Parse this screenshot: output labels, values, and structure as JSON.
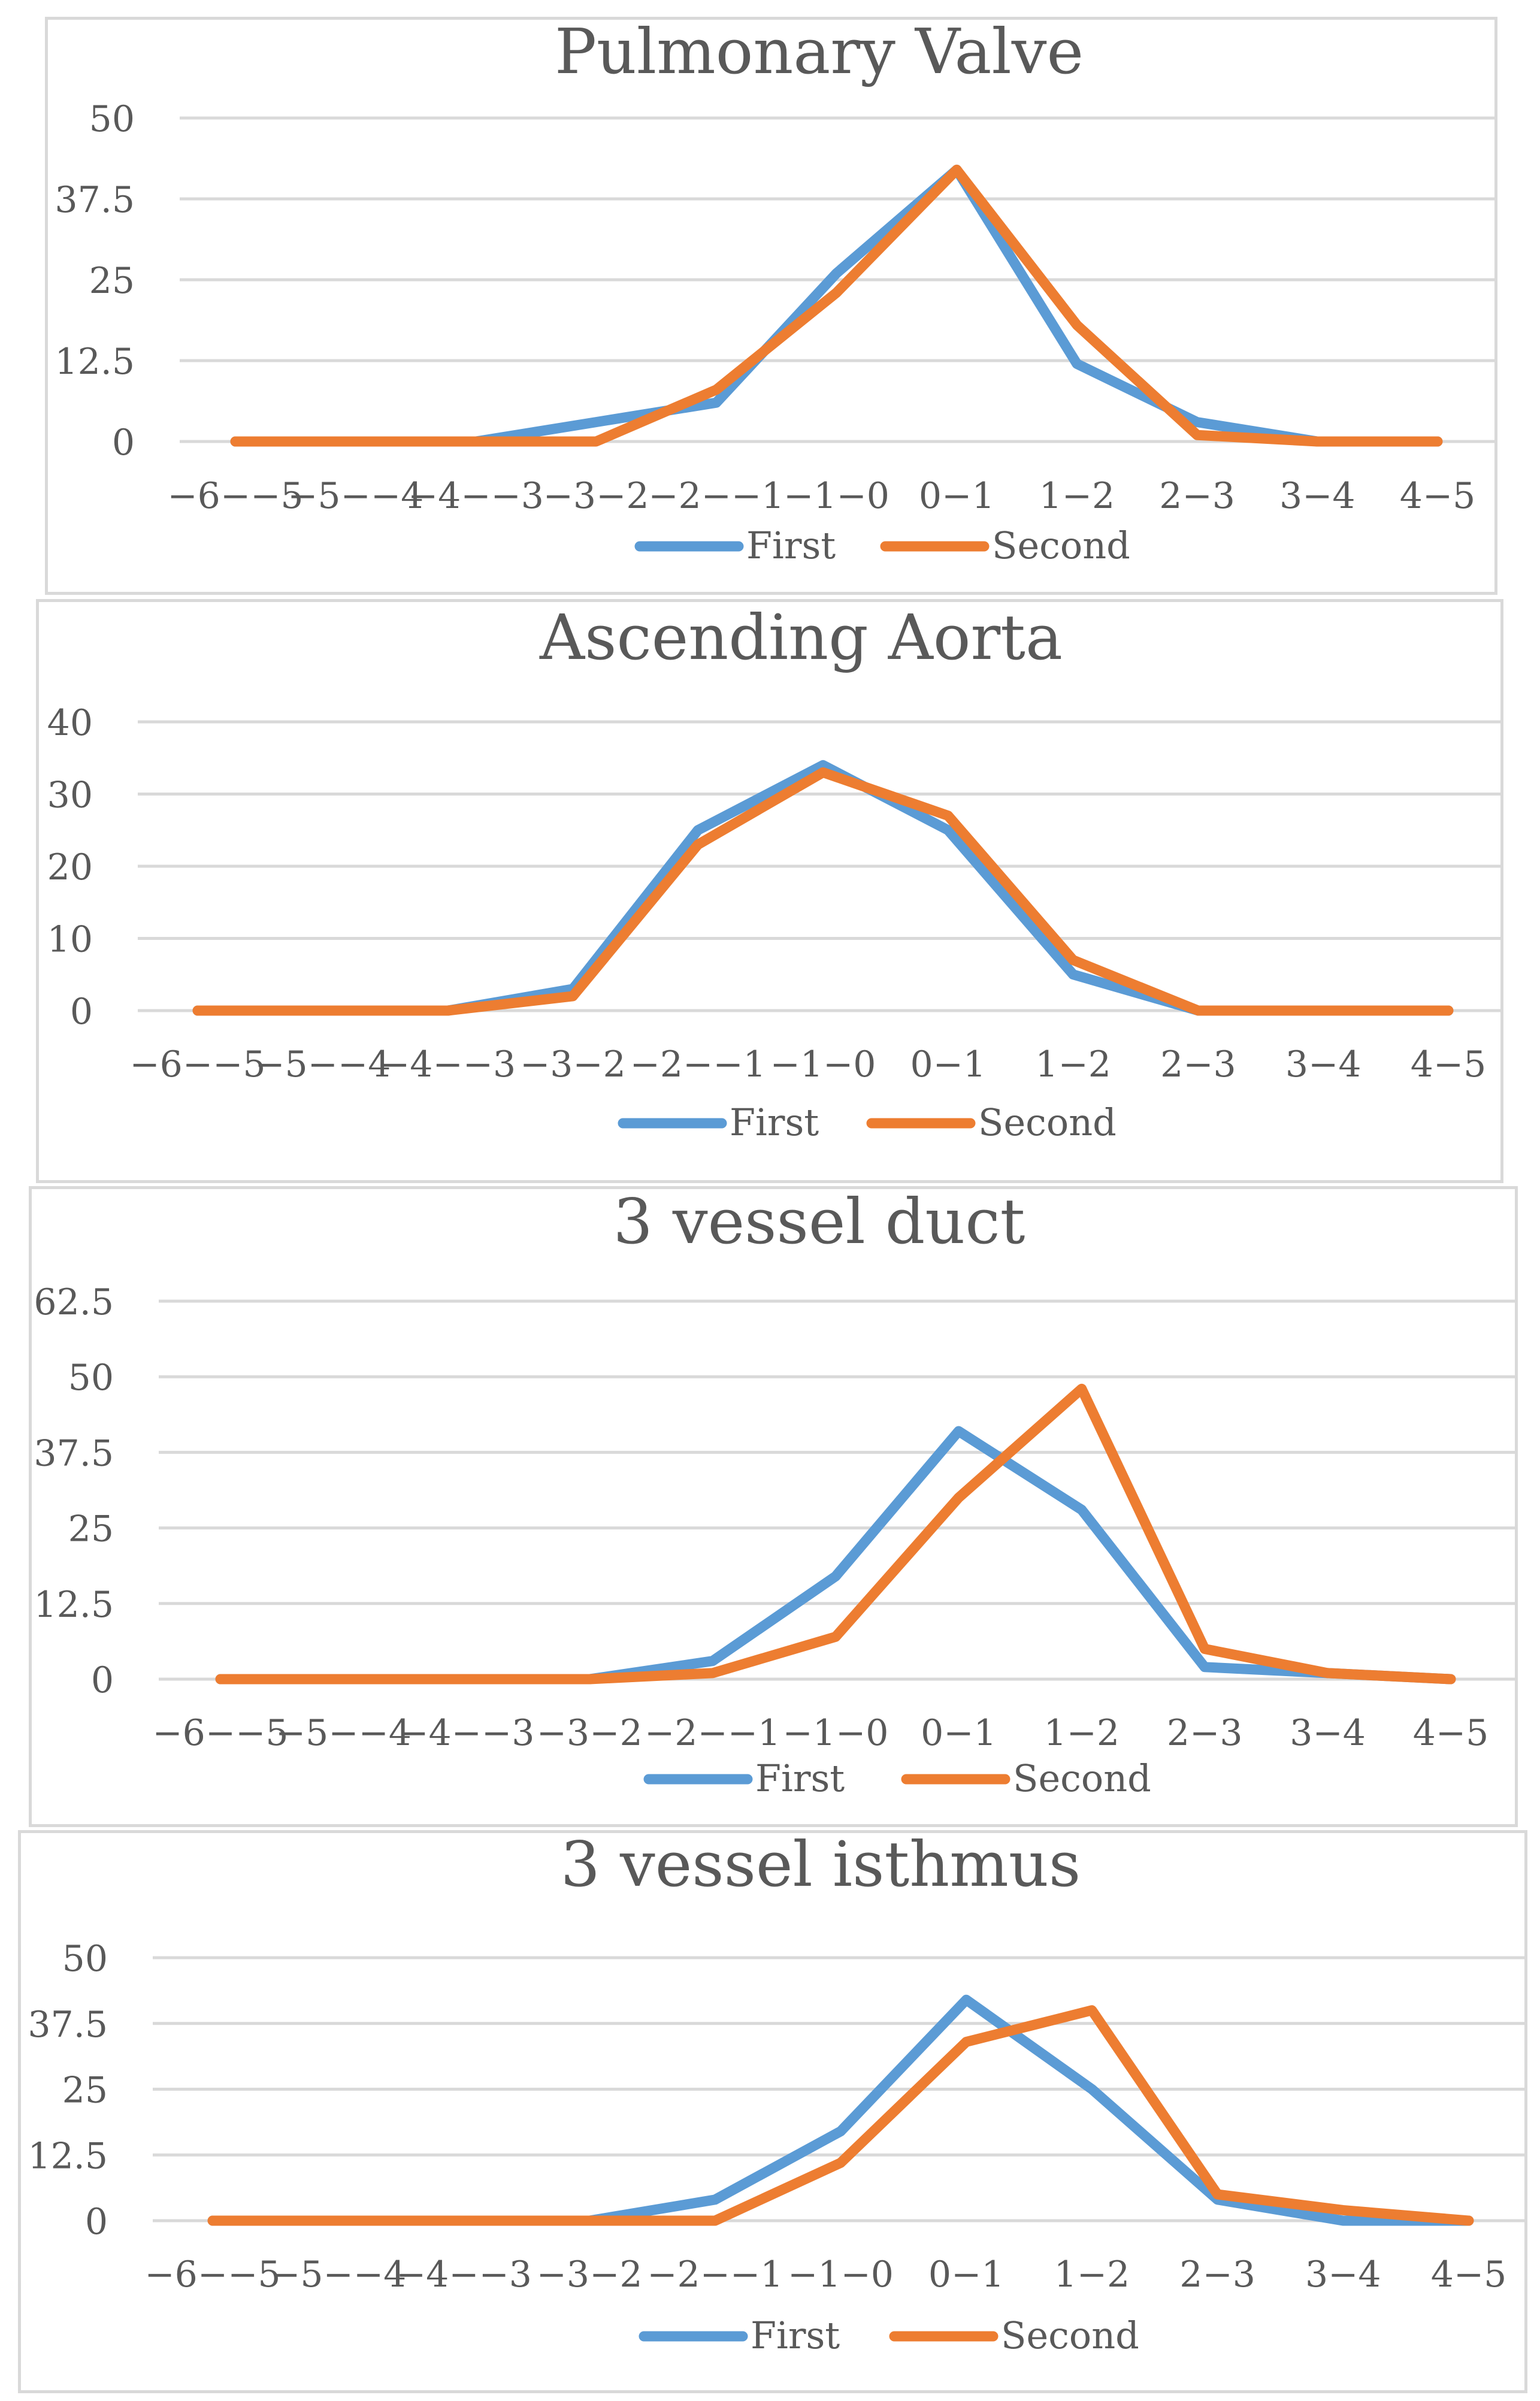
{
  "chart_data": [
    {
      "type": "line",
      "title": "Pulmonary Valve",
      "categories": [
        "−6−−5",
        "−5−−4",
        "−4−−3",
        "−3−2",
        "−2−−1",
        "−1−0",
        "0−1",
        "1−2",
        "2−3",
        "3−4",
        "4−5"
      ],
      "yticks": [
        "0",
        "12.5",
        "25",
        "37.5",
        "50"
      ],
      "ylim": [
        0,
        50
      ],
      "grid": true,
      "legend": "bottom",
      "series": [
        {
          "name": "First",
          "color": "#5b9bd5",
          "values": [
            0,
            0,
            0,
            3,
            6,
            26,
            42,
            12,
            3,
            0,
            0
          ]
        },
        {
          "name": "Second",
          "color": "#ed7d31",
          "values": [
            0,
            0,
            0,
            0,
            8,
            23,
            42,
            18,
            1,
            0,
            0
          ]
        }
      ]
    },
    {
      "type": "line",
      "title": "Ascending Aorta",
      "categories": [
        "−6−−5",
        "−5−−4",
        "−4−−3",
        "−3−2",
        "−2−−1",
        "−1−0",
        "0−1",
        "1−2",
        "2−3",
        "3−4",
        "4−5"
      ],
      "yticks": [
        "0",
        "10",
        "20",
        "30",
        "40"
      ],
      "ylim": [
        0,
        40
      ],
      "grid": true,
      "legend": "bottom",
      "series": [
        {
          "name": "First",
          "color": "#5b9bd5",
          "values": [
            0,
            0,
            0,
            3,
            25,
            34,
            25,
            5,
            0,
            0,
            0
          ]
        },
        {
          "name": "Second",
          "color": "#ed7d31",
          "values": [
            0,
            0,
            0,
            2,
            23,
            33,
            27,
            7,
            0,
            0,
            0
          ]
        }
      ]
    },
    {
      "type": "line",
      "title": "3 vessel duct",
      "categories": [
        "−6−−5",
        "−5−−4",
        "−4−−3",
        "−3−2",
        "−2−−1",
        "−1−0",
        "0−1",
        "1−2",
        "2−3",
        "3−4",
        "4−5"
      ],
      "yticks": [
        "0",
        "12.5",
        "25",
        "37.5",
        "50",
        "62.5"
      ],
      "ylim": [
        0,
        62.5
      ],
      "grid": true,
      "legend": "bottom",
      "series": [
        {
          "name": "First",
          "color": "#5b9bd5",
          "values": [
            0,
            0,
            0,
            0,
            3,
            17,
            41,
            28,
            2,
            1,
            0
          ]
        },
        {
          "name": "Second",
          "color": "#ed7d31",
          "values": [
            0,
            0,
            0,
            0,
            1,
            7,
            30,
            48,
            5,
            1,
            0
          ]
        }
      ]
    },
    {
      "type": "line",
      "title": "3 vessel isthmus",
      "categories": [
        "−6−−5",
        "−5−−4",
        "−4−−3",
        "−3−2",
        "−2−−1",
        "−1−0",
        "0−1",
        "1−2",
        "2−3",
        "3−4",
        "4−5"
      ],
      "yticks": [
        "0",
        "12.5",
        "25",
        "37.5",
        "50"
      ],
      "ylim": [
        0,
        50
      ],
      "grid": true,
      "legend": "bottom",
      "series": [
        {
          "name": "First",
          "color": "#5b9bd5",
          "values": [
            0,
            0,
            0,
            0,
            4,
            17,
            42,
            25,
            4,
            0,
            0
          ]
        },
        {
          "name": "Second",
          "color": "#ed7d31",
          "values": [
            0,
            0,
            0,
            0,
            0,
            11,
            34,
            40,
            5,
            2,
            0
          ]
        }
      ]
    }
  ]
}
